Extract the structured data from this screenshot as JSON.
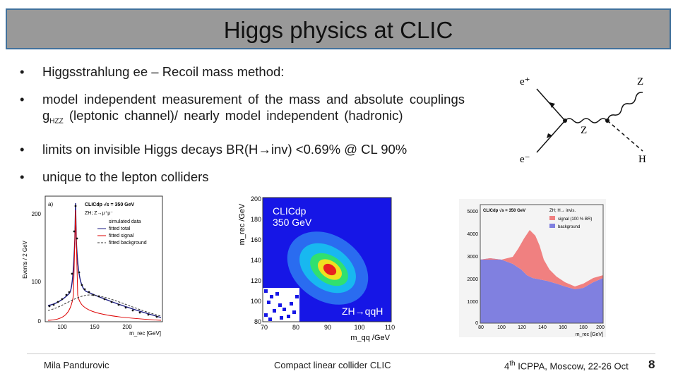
{
  "slide": {
    "title": "Higgs physics at CLIC",
    "bullets": [
      {
        "pre": "Higgsstrahlung ee – Recoil mass method:"
      },
      {
        "pre": "model independent measurement of the mass and absolute couplings g",
        "sub": "HZZ",
        "post": " (leptonic channel)/ nearly model independent (hadronic)"
      },
      {
        "pre": "limits on invisible Higgs decays BR(H→inv) <0.69% @ CL 90%"
      },
      {
        "pre": "unique to the lepton colliders"
      }
    ],
    "bullet_char": "•"
  },
  "feynman": {
    "labels": {
      "e_plus": "e⁺",
      "e_minus": "e⁻",
      "z_out": "Z",
      "z_prop": "Z",
      "h": "H"
    }
  },
  "plot_left": {
    "ylabel": "Events / 2 GeV",
    "xlabel": "m_rec [GeV]",
    "panel": "a)",
    "header": "CLICdp √s = 350 GeV",
    "process": "ZH; Z→μ⁺μ⁻",
    "legend": [
      "simulated data",
      "fitted total",
      "fitted signal",
      "fitted background"
    ],
    "yticks": [
      "200",
      "100",
      "0"
    ],
    "xticks": [
      "100",
      "150",
      "200"
    ]
  },
  "plot_mid": {
    "label1": "CLICdp",
    "label2": "350 GeV",
    "label3": "ZH→qqH",
    "ylabel": "m_rec /GeV",
    "xlabel": "m_qq /GeV",
    "yticks": [
      "200",
      "180",
      "160",
      "140",
      "120",
      "100",
      "80"
    ],
    "xticks": [
      "70",
      "80",
      "90",
      "100",
      "110"
    ]
  },
  "plot_right": {
    "header": "CLICdp √s = 350 GeV",
    "process": "ZH; H→ invis.",
    "legend": [
      "signal (100 % BR)",
      "background"
    ],
    "yticks": [
      "5000",
      "4000",
      "3000",
      "2000",
      "1000",
      "0"
    ],
    "xticks": [
      "80",
      "100",
      "120",
      "140",
      "160",
      "180",
      "200"
    ],
    "xlabel": "m_rec [GeV]",
    "signal_color": "#f08080",
    "background_color": "#8080e0"
  },
  "footer": {
    "author": "Mila Pandurovic",
    "center": "Compact linear collider CLIC",
    "conf_num": "4",
    "conf_sup": "th",
    "conf_rest": " ICPPA, Moscow,  22-26 Oct",
    "page": "8"
  }
}
